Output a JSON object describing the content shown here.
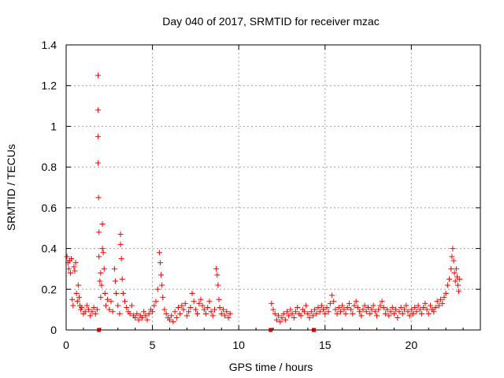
{
  "chart_data": {
    "type": "scatter",
    "title": "Day 040 of 2017, SRMTID for receiver mzac",
    "xlabel": "GPS time / hours",
    "ylabel": "SRMTID / TECUs",
    "xlim": [
      0,
      24
    ],
    "ylim": [
      0,
      1.4
    ],
    "grid": true,
    "marker": "+",
    "marker_color": "#ff0000",
    "square_marker_color": "#cc0000",
    "xticks": [
      0,
      5,
      10,
      15,
      20
    ],
    "xtick_labels": [
      "0",
      "5",
      "10",
      "15",
      "20"
    ],
    "yticks": [
      0,
      0.2,
      0.4,
      0.6,
      0.8,
      1.0,
      1.2,
      1.4
    ],
    "ytick_labels": [
      "0",
      "0.2",
      "0.4",
      "0.6",
      "0.8",
      "1",
      "1.2",
      "1.4"
    ],
    "series": [
      {
        "name": "SRMTID",
        "points": [
          [
            0.05,
            0.36
          ],
          [
            0.1,
            0.33
          ],
          [
            0.15,
            0.3
          ],
          [
            0.2,
            0.34
          ],
          [
            0.25,
            0.28
          ],
          [
            0.3,
            0.35
          ],
          [
            0.35,
            0.15
          ],
          [
            0.4,
            0.12
          ],
          [
            0.45,
            0.31
          ],
          [
            0.5,
            0.29
          ],
          [
            0.55,
            0.33
          ],
          [
            0.6,
            0.18
          ],
          [
            0.65,
            0.14
          ],
          [
            0.7,
            0.22
          ],
          [
            0.75,
            0.16
          ],
          [
            0.8,
            0.12
          ],
          [
            0.85,
            0.1
          ],
          [
            0.9,
            0.11
          ],
          [
            1.0,
            0.08
          ],
          [
            1.1,
            0.09
          ],
          [
            1.2,
            0.12
          ],
          [
            1.3,
            0.1
          ],
          [
            1.4,
            0.07
          ],
          [
            1.5,
            0.09
          ],
          [
            1.6,
            0.11
          ],
          [
            1.7,
            0.08
          ],
          [
            1.8,
            0.1
          ],
          [
            1.85,
            1.25
          ],
          [
            1.85,
            1.08
          ],
          [
            1.85,
            0.95
          ],
          [
            1.85,
            0.82
          ],
          [
            1.88,
            0.65
          ],
          [
            1.9,
            0.48
          ],
          [
            1.9,
            0.36
          ],
          [
            1.95,
            0.24
          ],
          [
            2.0,
            0.16
          ],
          [
            2.0,
            0.28
          ],
          [
            2.05,
            0.22
          ],
          [
            2.1,
            0.52
          ],
          [
            2.1,
            0.4
          ],
          [
            2.15,
            0.38
          ],
          [
            2.2,
            0.3
          ],
          [
            2.25,
            0.18
          ],
          [
            2.3,
            0.12
          ],
          [
            2.4,
            0.15
          ],
          [
            2.5,
            0.1
          ],
          [
            2.6,
            0.14
          ],
          [
            2.7,
            0.09
          ],
          [
            2.8,
            0.3
          ],
          [
            2.85,
            0.24
          ],
          [
            2.9,
            0.18
          ],
          [
            3.0,
            0.12
          ],
          [
            3.1,
            0.08
          ],
          [
            3.15,
            0.47
          ],
          [
            3.15,
            0.42
          ],
          [
            3.2,
            0.35
          ],
          [
            3.25,
            0.25
          ],
          [
            3.3,
            0.18
          ],
          [
            3.4,
            0.14
          ],
          [
            3.5,
            0.11
          ],
          [
            3.6,
            0.09
          ],
          [
            3.7,
            0.08
          ],
          [
            3.8,
            0.12
          ],
          [
            3.9,
            0.07
          ],
          [
            4.0,
            0.06
          ],
          [
            4.1,
            0.08
          ],
          [
            4.2,
            0.05
          ],
          [
            4.3,
            0.07
          ],
          [
            4.4,
            0.06
          ],
          [
            4.5,
            0.09
          ],
          [
            4.6,
            0.07
          ],
          [
            4.7,
            0.05
          ],
          [
            4.8,
            0.08
          ],
          [
            4.9,
            0.1
          ],
          [
            5.0,
            0.09
          ],
          [
            5.1,
            0.12
          ],
          [
            5.2,
            0.14
          ],
          [
            5.3,
            0.2
          ],
          [
            5.4,
            0.38
          ],
          [
            5.45,
            0.33
          ],
          [
            5.5,
            0.27
          ],
          [
            5.55,
            0.22
          ],
          [
            5.6,
            0.16
          ],
          [
            5.7,
            0.1
          ],
          [
            5.8,
            0.08
          ],
          [
            5.9,
            0.06
          ],
          [
            6.0,
            0.05
          ],
          [
            6.1,
            0.07
          ],
          [
            6.2,
            0.04
          ],
          [
            6.3,
            0.09
          ],
          [
            6.4,
            0.06
          ],
          [
            6.5,
            0.11
          ],
          [
            6.6,
            0.08
          ],
          [
            6.7,
            0.12
          ],
          [
            6.8,
            0.1
          ],
          [
            6.9,
            0.13
          ],
          [
            7.0,
            0.07
          ],
          [
            7.1,
            0.09
          ],
          [
            7.2,
            0.11
          ],
          [
            7.3,
            0.18
          ],
          [
            7.4,
            0.14
          ],
          [
            7.5,
            0.1
          ],
          [
            7.6,
            0.08
          ],
          [
            7.7,
            0.13
          ],
          [
            7.8,
            0.15
          ],
          [
            7.9,
            0.12
          ],
          [
            8.0,
            0.1
          ],
          [
            8.1,
            0.08
          ],
          [
            8.2,
            0.11
          ],
          [
            8.3,
            0.14
          ],
          [
            8.4,
            0.09
          ],
          [
            8.5,
            0.07
          ],
          [
            8.6,
            0.1
          ],
          [
            8.7,
            0.3
          ],
          [
            8.75,
            0.27
          ],
          [
            8.8,
            0.22
          ],
          [
            8.85,
            0.15
          ],
          [
            8.9,
            0.11
          ],
          [
            9.0,
            0.08
          ],
          [
            9.1,
            0.1
          ],
          [
            9.2,
            0.07
          ],
          [
            9.3,
            0.09
          ],
          [
            9.4,
            0.06
          ],
          [
            9.5,
            0.08
          ],
          [
            11.9,
            0.13
          ],
          [
            12.0,
            0.1
          ],
          [
            12.1,
            0.08
          ],
          [
            12.2,
            0.05
          ],
          [
            12.3,
            0.07
          ],
          [
            12.4,
            0.04
          ],
          [
            12.5,
            0.06
          ],
          [
            12.6,
            0.08
          ],
          [
            12.7,
            0.05
          ],
          [
            12.8,
            0.09
          ],
          [
            12.9,
            0.07
          ],
          [
            13.0,
            0.1
          ],
          [
            13.1,
            0.08
          ],
          [
            13.2,
            0.06
          ],
          [
            13.3,
            0.09
          ],
          [
            13.4,
            0.11
          ],
          [
            13.5,
            0.08
          ],
          [
            13.6,
            0.07
          ],
          [
            13.7,
            0.1
          ],
          [
            13.8,
            0.09
          ],
          [
            13.9,
            0.12
          ],
          [
            14.0,
            0.08
          ],
          [
            14.1,
            0.06
          ],
          [
            14.2,
            0.09
          ],
          [
            14.3,
            0.07
          ],
          [
            14.4,
            0.1
          ],
          [
            14.5,
            0.08
          ],
          [
            14.6,
            0.11
          ],
          [
            14.7,
            0.09
          ],
          [
            14.8,
            0.12
          ],
          [
            14.9,
            0.1
          ],
          [
            15.0,
            0.08
          ],
          [
            15.1,
            0.11
          ],
          [
            15.2,
            0.09
          ],
          [
            15.3,
            0.13
          ],
          [
            15.4,
            0.17
          ],
          [
            15.5,
            0.14
          ],
          [
            15.6,
            0.1
          ],
          [
            15.7,
            0.08
          ],
          [
            15.8,
            0.11
          ],
          [
            15.9,
            0.09
          ],
          [
            16.0,
            0.12
          ],
          [
            16.1,
            0.1
          ],
          [
            16.2,
            0.08
          ],
          [
            16.3,
            0.11
          ],
          [
            16.4,
            0.13
          ],
          [
            16.5,
            0.1
          ],
          [
            16.6,
            0.08
          ],
          [
            16.7,
            0.12
          ],
          [
            16.8,
            0.14
          ],
          [
            16.9,
            0.11
          ],
          [
            17.0,
            0.09
          ],
          [
            17.1,
            0.07
          ],
          [
            17.2,
            0.1
          ],
          [
            17.3,
            0.12
          ],
          [
            17.4,
            0.09
          ],
          [
            17.5,
            0.11
          ],
          [
            17.6,
            0.08
          ],
          [
            17.7,
            0.1
          ],
          [
            17.8,
            0.12
          ],
          [
            17.9,
            0.09
          ],
          [
            18.0,
            0.07
          ],
          [
            18.1,
            0.1
          ],
          [
            18.2,
            0.12
          ],
          [
            18.3,
            0.14
          ],
          [
            18.4,
            0.11
          ],
          [
            18.5,
            0.08
          ],
          [
            18.6,
            0.1
          ],
          [
            18.7,
            0.07
          ],
          [
            18.8,
            0.09
          ],
          [
            18.9,
            0.11
          ],
          [
            19.0,
            0.08
          ],
          [
            19.1,
            0.1
          ],
          [
            19.2,
            0.06
          ],
          [
            19.3,
            0.09
          ],
          [
            19.4,
            0.11
          ],
          [
            19.5,
            0.08
          ],
          [
            19.6,
            0.1
          ],
          [
            19.7,
            0.12
          ],
          [
            19.8,
            0.09
          ],
          [
            19.9,
            0.07
          ],
          [
            20.0,
            0.1
          ],
          [
            20.1,
            0.08
          ],
          [
            20.2,
            0.11
          ],
          [
            20.3,
            0.09
          ],
          [
            20.4,
            0.12
          ],
          [
            20.5,
            0.1
          ],
          [
            20.6,
            0.08
          ],
          [
            20.7,
            0.11
          ],
          [
            20.8,
            0.13
          ],
          [
            20.9,
            0.1
          ],
          [
            21.0,
            0.08
          ],
          [
            21.1,
            0.12
          ],
          [
            21.2,
            0.1
          ],
          [
            21.3,
            0.09
          ],
          [
            21.4,
            0.11
          ],
          [
            21.5,
            0.14
          ],
          [
            21.6,
            0.12
          ],
          [
            21.7,
            0.15
          ],
          [
            21.8,
            0.13
          ],
          [
            21.9,
            0.16
          ],
          [
            22.0,
            0.18
          ],
          [
            22.1,
            0.22
          ],
          [
            22.2,
            0.25
          ],
          [
            22.3,
            0.3
          ],
          [
            22.35,
            0.36
          ],
          [
            22.4,
            0.4
          ],
          [
            22.45,
            0.34
          ],
          [
            22.5,
            0.28
          ],
          [
            22.55,
            0.24
          ],
          [
            22.6,
            0.3
          ],
          [
            22.65,
            0.26
          ],
          [
            22.7,
            0.22
          ],
          [
            22.75,
            0.19
          ],
          [
            22.8,
            0.25
          ]
        ]
      },
      {
        "name": "markers",
        "marker": "square",
        "points": [
          [
            1.9,
            0
          ],
          [
            11.85,
            0
          ],
          [
            14.35,
            0
          ]
        ]
      }
    ]
  }
}
